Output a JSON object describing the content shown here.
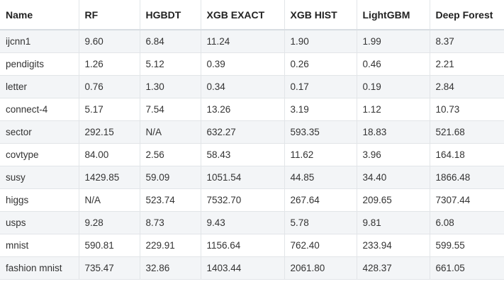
{
  "table": {
    "headers": [
      "Name",
      "RF",
      "HGBDT",
      "XGB EXACT",
      "XGB HIST",
      "LightGBM",
      "Deep Forest"
    ],
    "rows": [
      [
        "ijcnn1",
        "9.60",
        "6.84",
        "11.24",
        "1.90",
        "1.99",
        "8.37"
      ],
      [
        "pendigits",
        "1.26",
        "5.12",
        "0.39",
        "0.26",
        "0.46",
        "2.21"
      ],
      [
        "letter",
        "0.76",
        "1.30",
        "0.34",
        "0.17",
        "0.19",
        "2.84"
      ],
      [
        "connect-4",
        "5.17",
        "7.54",
        "13.26",
        "3.19",
        "1.12",
        "10.73"
      ],
      [
        "sector",
        "292.15",
        "N/A",
        "632.27",
        "593.35",
        "18.83",
        "521.68"
      ],
      [
        "covtype",
        "84.00",
        "2.56",
        "58.43",
        "11.62",
        "3.96",
        "164.18"
      ],
      [
        "susy",
        "1429.85",
        "59.09",
        "1051.54",
        "44.85",
        "34.40",
        "1866.48"
      ],
      [
        "higgs",
        "N/A",
        "523.74",
        "7532.70",
        "267.64",
        "209.65",
        "7307.44"
      ],
      [
        "usps",
        "9.28",
        "8.73",
        "9.43",
        "5.78",
        "9.81",
        "6.08"
      ],
      [
        "mnist",
        "590.81",
        "229.91",
        "1156.64",
        "762.40",
        "233.94",
        "599.55"
      ],
      [
        "fashion mnist",
        "735.47",
        "32.86",
        "1403.44",
        "2061.80",
        "428.37",
        "661.05"
      ]
    ]
  }
}
